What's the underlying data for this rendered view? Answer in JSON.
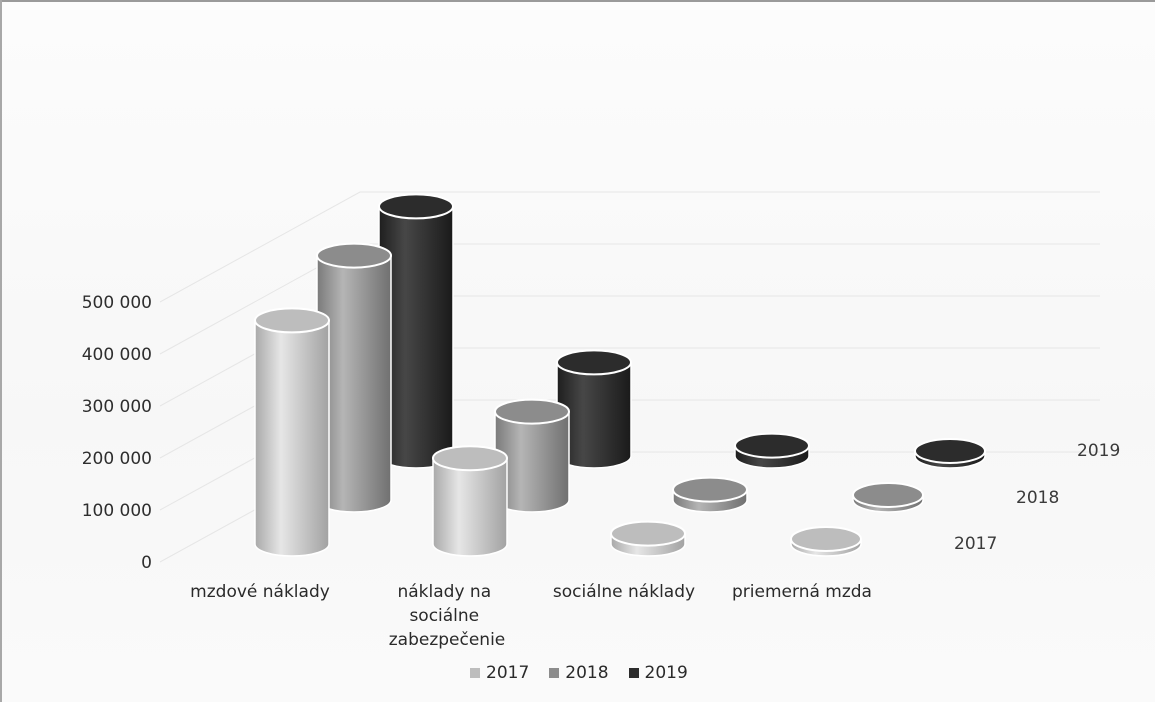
{
  "colors": {
    "2017": "#bdbdbd",
    "2018": "#8c8c8c",
    "2019": "#2c2c2c"
  },
  "chart_data": {
    "type": "bar",
    "style": "3d-cylinder",
    "categories": [
      "mzdové náklady",
      "náklady na sociálne zabezpečenie",
      "sociálne náklady",
      "priemerná mzda"
    ],
    "series": [
      {
        "name": "2017",
        "values": [
          430000,
          165000,
          20000,
          1100
        ]
      },
      {
        "name": "2018",
        "values": [
          470000,
          170000,
          20000,
          1200
        ]
      },
      {
        "name": "2019",
        "values": [
          480000,
          180000,
          20000,
          1300
        ]
      }
    ],
    "y_ticks": [
      "0",
      "100 000",
      "200 000",
      "300 000",
      "400 000",
      "500 000"
    ],
    "ylim": [
      0,
      500000
    ],
    "depth_labels": [
      "2017",
      "2018",
      "2019"
    ],
    "legend": [
      "2017",
      "2018",
      "2019"
    ],
    "legend_position": "bottom",
    "grid": true
  }
}
